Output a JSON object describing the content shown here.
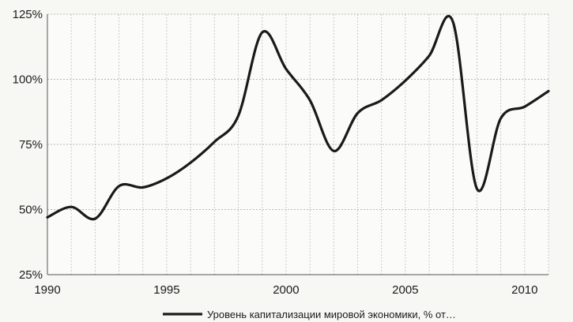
{
  "chart_data": {
    "type": "line",
    "title": "",
    "xlabel": "",
    "ylabel": "",
    "xlim": [
      1990,
      2011
    ],
    "ylim": [
      25,
      125
    ],
    "x_ticks": [
      1990,
      1995,
      2000,
      2005,
      2010
    ],
    "x_tick_labels": [
      "1990",
      "1995",
      "2000",
      "2005",
      "2010"
    ],
    "y_ticks": [
      25,
      50,
      75,
      100,
      125
    ],
    "y_tick_labels": [
      "25%",
      "50%",
      "75%",
      "100%",
      "125%"
    ],
    "grid": true,
    "legend_position": "bottom",
    "series": [
      {
        "name": "Уровень капитализации мировой экономики, % от…",
        "color": "#1a1a1a",
        "x": [
          1990,
          1991,
          1992,
          1993,
          1994,
          1995,
          1996,
          1997,
          1998,
          1999,
          2000,
          2001,
          2002,
          2003,
          2004,
          2005,
          2006,
          2007,
          2008,
          2009,
          2010,
          2011
        ],
        "y": [
          47,
          51,
          46.5,
          59,
          58.5,
          62,
          68,
          76,
          86,
          118,
          104,
          92,
          72.5,
          87,
          92,
          99.5,
          109,
          122,
          58,
          85,
          89.5,
          95.5
        ]
      }
    ]
  }
}
